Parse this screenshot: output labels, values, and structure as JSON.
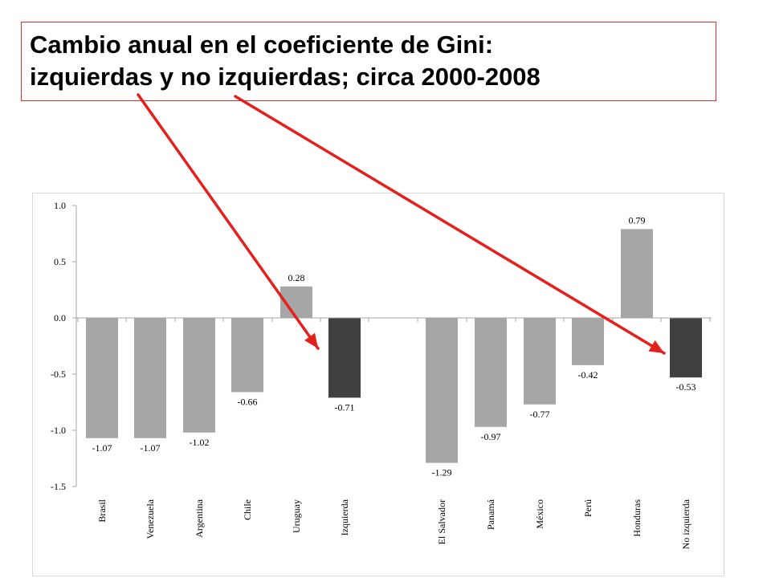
{
  "header": {
    "title_line1": "Cambio anual en el coeficiente de Gini:",
    "title_line2": "izquierdas y no izquierdas; circa 2000-2008"
  },
  "chart_data": {
    "type": "bar",
    "ylim": [
      -1.5,
      1.0
    ],
    "yticks": [
      "1.0",
      "0.5",
      "0.0",
      "-0.5",
      "-1.0",
      "-1.5"
    ],
    "grid": false,
    "categories": [
      "Brasil",
      "Venezuela",
      "Argentina",
      "Chile",
      "Uruguay",
      "Izquierda",
      "El Salvador",
      "Panamá",
      "México",
      "Perú",
      "Honduras",
      "No izquierda"
    ],
    "values": [
      -1.07,
      -1.07,
      -1.02,
      -0.66,
      0.28,
      -0.71,
      -1.29,
      -0.97,
      -0.77,
      -0.42,
      0.79,
      -0.53
    ],
    "value_labels": [
      "-1.07",
      "-1.07",
      "-1.02",
      "-0.66",
      "0.28",
      "-0.71",
      "-1.29",
      "-0.97",
      "-0.77",
      "-0.42",
      "0.79",
      "-0.53"
    ],
    "highlighted": [
      "Izquierda",
      "No izquierda"
    ],
    "colors": {
      "bar": "#a6a6a6",
      "highlight": "#404040",
      "arrow": "#e3201b",
      "axis": "#a6a6a6"
    }
  }
}
